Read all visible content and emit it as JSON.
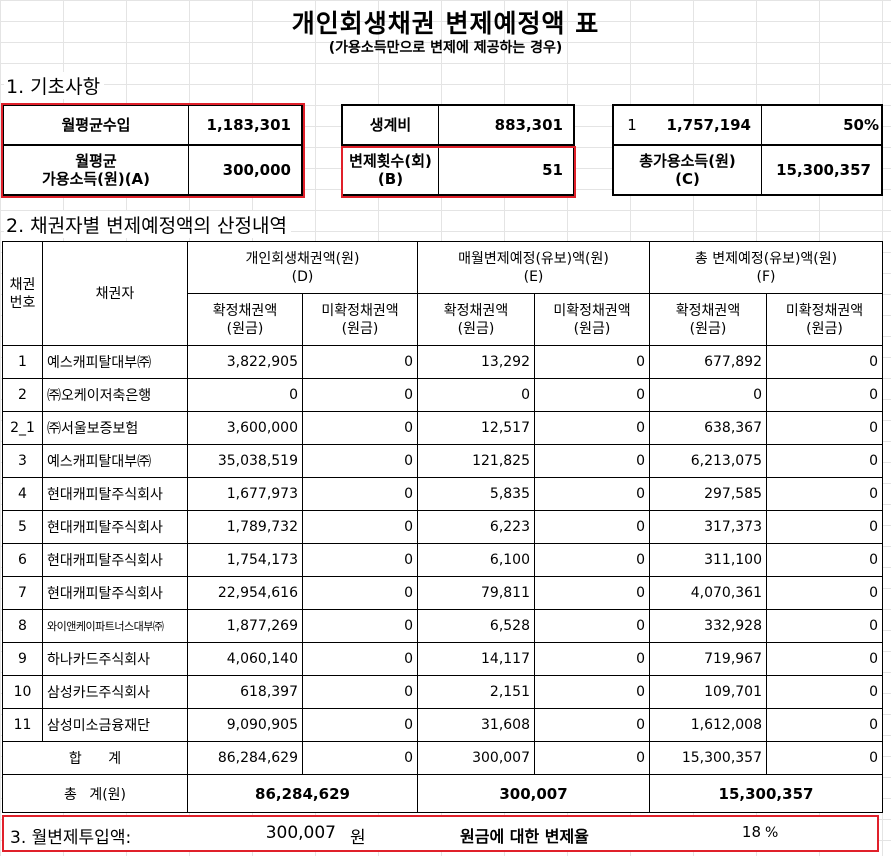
{
  "title": "개인회생채권 변제예정액 표",
  "subtitle": "(가용소득만으로 변제에 제공하는 경우)",
  "section1": "1. 기초사항",
  "section2": "2. 채권자별 변제예정액의 산정내역",
  "section3": "3. 월변제투입액:",
  "basics": {
    "monthly_income_label": "월평균수입",
    "monthly_income": "1,183,301",
    "disposable_label": "월평균\n가용소득(원)(A)",
    "disposable": "300,000",
    "living_cost_label": "생계비",
    "living_cost": "883,301",
    "payments_label": "변제횟수(회)\n(B)",
    "payments": "51",
    "box3_num": "1",
    "box3_amount": "1,757,194",
    "box3_pct": "50%",
    "total_disposable_label": "총가용소득(원)\n(C)",
    "total_disposable": "15,300,357"
  },
  "table": {
    "col_no": "채권\n번호",
    "col_creditor": "채권자",
    "group_d": "개인회생채권액(원)\n(D)",
    "group_e": "매월변제예정(유보)액(원)\n(E)",
    "group_f": "총 변제예정(유보)액(원)\n(F)",
    "sub_confirmed": "확정채권액\n(원금)",
    "sub_unconfirmed": "미확정채권액\n(원금)",
    "rows": [
      {
        "no": "1",
        "creditor": "예스캐피탈대부㈜",
        "d1": "3,822,905",
        "d2": "0",
        "e1": "13,292",
        "e2": "0",
        "f1": "677,892",
        "f2": "0"
      },
      {
        "no": "2",
        "creditor": "㈜오케이저축은행",
        "d1": "0",
        "d2": "0",
        "e1": "0",
        "e2": "0",
        "f1": "0",
        "f2": "0"
      },
      {
        "no": "2_1",
        "creditor": "㈜서울보증보험",
        "d1": "3,600,000",
        "d2": "0",
        "e1": "12,517",
        "e2": "0",
        "f1": "638,367",
        "f2": "0"
      },
      {
        "no": "3",
        "creditor": "예스캐피탈대부㈜",
        "d1": "35,038,519",
        "d2": "0",
        "e1": "121,825",
        "e2": "0",
        "f1": "6,213,075",
        "f2": "0"
      },
      {
        "no": "4",
        "creditor": "현대캐피탈주식회사",
        "d1": "1,677,973",
        "d2": "0",
        "e1": "5,835",
        "e2": "0",
        "f1": "297,585",
        "f2": "0"
      },
      {
        "no": "5",
        "creditor": "현대캐피탈주식회사",
        "d1": "1,789,732",
        "d2": "0",
        "e1": "6,223",
        "e2": "0",
        "f1": "317,373",
        "f2": "0"
      },
      {
        "no": "6",
        "creditor": "현대캐피탈주식회사",
        "d1": "1,754,173",
        "d2": "0",
        "e1": "6,100",
        "e2": "0",
        "f1": "311,100",
        "f2": "0"
      },
      {
        "no": "7",
        "creditor": "현대캐피탈주식회사",
        "d1": "22,954,616",
        "d2": "0",
        "e1": "79,811",
        "e2": "0",
        "f1": "4,070,361",
        "f2": "0"
      },
      {
        "no": "8",
        "creditor": "와이앤케이파트너스대부㈜",
        "d1": "1,877,269",
        "d2": "0",
        "e1": "6,528",
        "e2": "0",
        "f1": "332,928",
        "f2": "0",
        "small": true
      },
      {
        "no": "9",
        "creditor": "하나카드주식회사",
        "d1": "4,060,140",
        "d2": "0",
        "e1": "14,117",
        "e2": "0",
        "f1": "719,967",
        "f2": "0"
      },
      {
        "no": "10",
        "creditor": "삼성카드주식회사",
        "d1": "618,397",
        "d2": "0",
        "e1": "2,151",
        "e2": "0",
        "f1": "109,701",
        "f2": "0"
      },
      {
        "no": "11",
        "creditor": "삼성미소금융재단",
        "d1": "9,090,905",
        "d2": "0",
        "e1": "31,608",
        "e2": "0",
        "f1": "1,612,008",
        "f2": "0"
      }
    ],
    "subtotal": {
      "label": "합 계",
      "d1": "86,284,629",
      "d2": "0",
      "e1": "300,007",
      "e2": "0",
      "f1": "15,300,357",
      "f2": "0"
    },
    "grand": {
      "label": "총 계(원)",
      "d": "86,284,629",
      "e": "300,007",
      "f": "15,300,357"
    }
  },
  "bottom": {
    "monthly_amount": "300,007",
    "unit": "원",
    "ratio_label": "원금에 대한 변제율",
    "ratio_value": "18",
    "ratio_unit": "%"
  }
}
